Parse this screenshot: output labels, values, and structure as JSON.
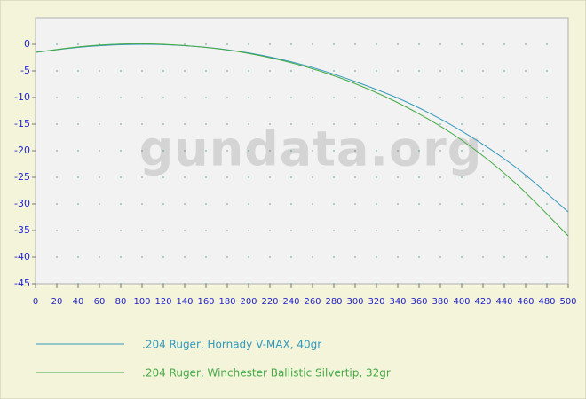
{
  "chart_data": {
    "type": "line",
    "watermark": "gundata.org",
    "x": [
      0,
      50,
      100,
      150,
      200,
      250,
      300,
      350,
      400,
      450,
      500
    ],
    "series": [
      {
        "name": ".204 Ruger, Hornady V-MAX, 40gr",
        "color": "#3399bb",
        "values": [
          -1.5,
          -0.4,
          0,
          -0.4,
          -1.6,
          -3.8,
          -7.0,
          -11.0,
          -16.3,
          -23.0,
          -31.5
        ]
      },
      {
        "name": ".204 Ruger, Winchester Ballistic Silvertip, 32gr",
        "color": "#44aa44",
        "values": [
          -1.5,
          -0.3,
          0.1,
          -0.4,
          -1.7,
          -4.0,
          -7.4,
          -12.0,
          -18.0,
          -26.0,
          -36.0
        ]
      }
    ],
    "xlim": [
      0,
      500
    ],
    "xticks": [
      0,
      20,
      40,
      60,
      80,
      100,
      120,
      140,
      160,
      180,
      200,
      220,
      240,
      260,
      280,
      300,
      320,
      340,
      360,
      380,
      400,
      420,
      440,
      460,
      480,
      500
    ],
    "ylim": [
      -45,
      5
    ],
    "yticks": [
      -45,
      -40,
      -35,
      -30,
      -25,
      -20,
      -15,
      -10,
      -5,
      0
    ],
    "grid": true
  }
}
